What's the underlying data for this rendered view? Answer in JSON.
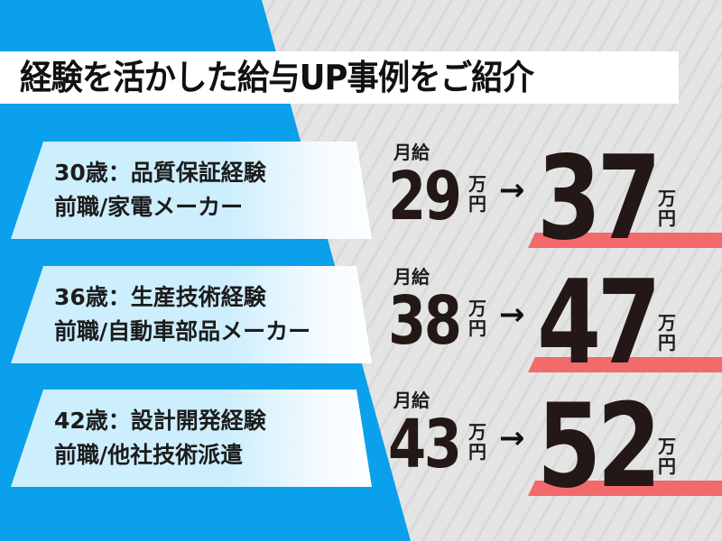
{
  "title": "経験を活かした給与UP事例をご紹介",
  "colors": {
    "blue": "#0aa0ec",
    "card": "#cdeefd",
    "highlight": "#f26a6c",
    "text": "#231815"
  },
  "cases": [
    {
      "line1": "30歳：品質保証経験",
      "line2": "前職/家電メーカー",
      "label": "月給",
      "before": "29",
      "after": "37",
      "unit_top": "万",
      "unit_bottom": "円",
      "arrow": "→"
    },
    {
      "line1": "36歳：生産技術経験",
      "line2": "前職/自動車部品メーカー",
      "label": "月給",
      "before": "38",
      "after": "47",
      "unit_top": "万",
      "unit_bottom": "円",
      "arrow": "→"
    },
    {
      "line1": "42歳：設計開発経験",
      "line2": "前職/他社技術派遣",
      "label": "月給",
      "before": "43",
      "after": "52",
      "unit_top": "万",
      "unit_bottom": "円",
      "arrow": "→"
    }
  ]
}
